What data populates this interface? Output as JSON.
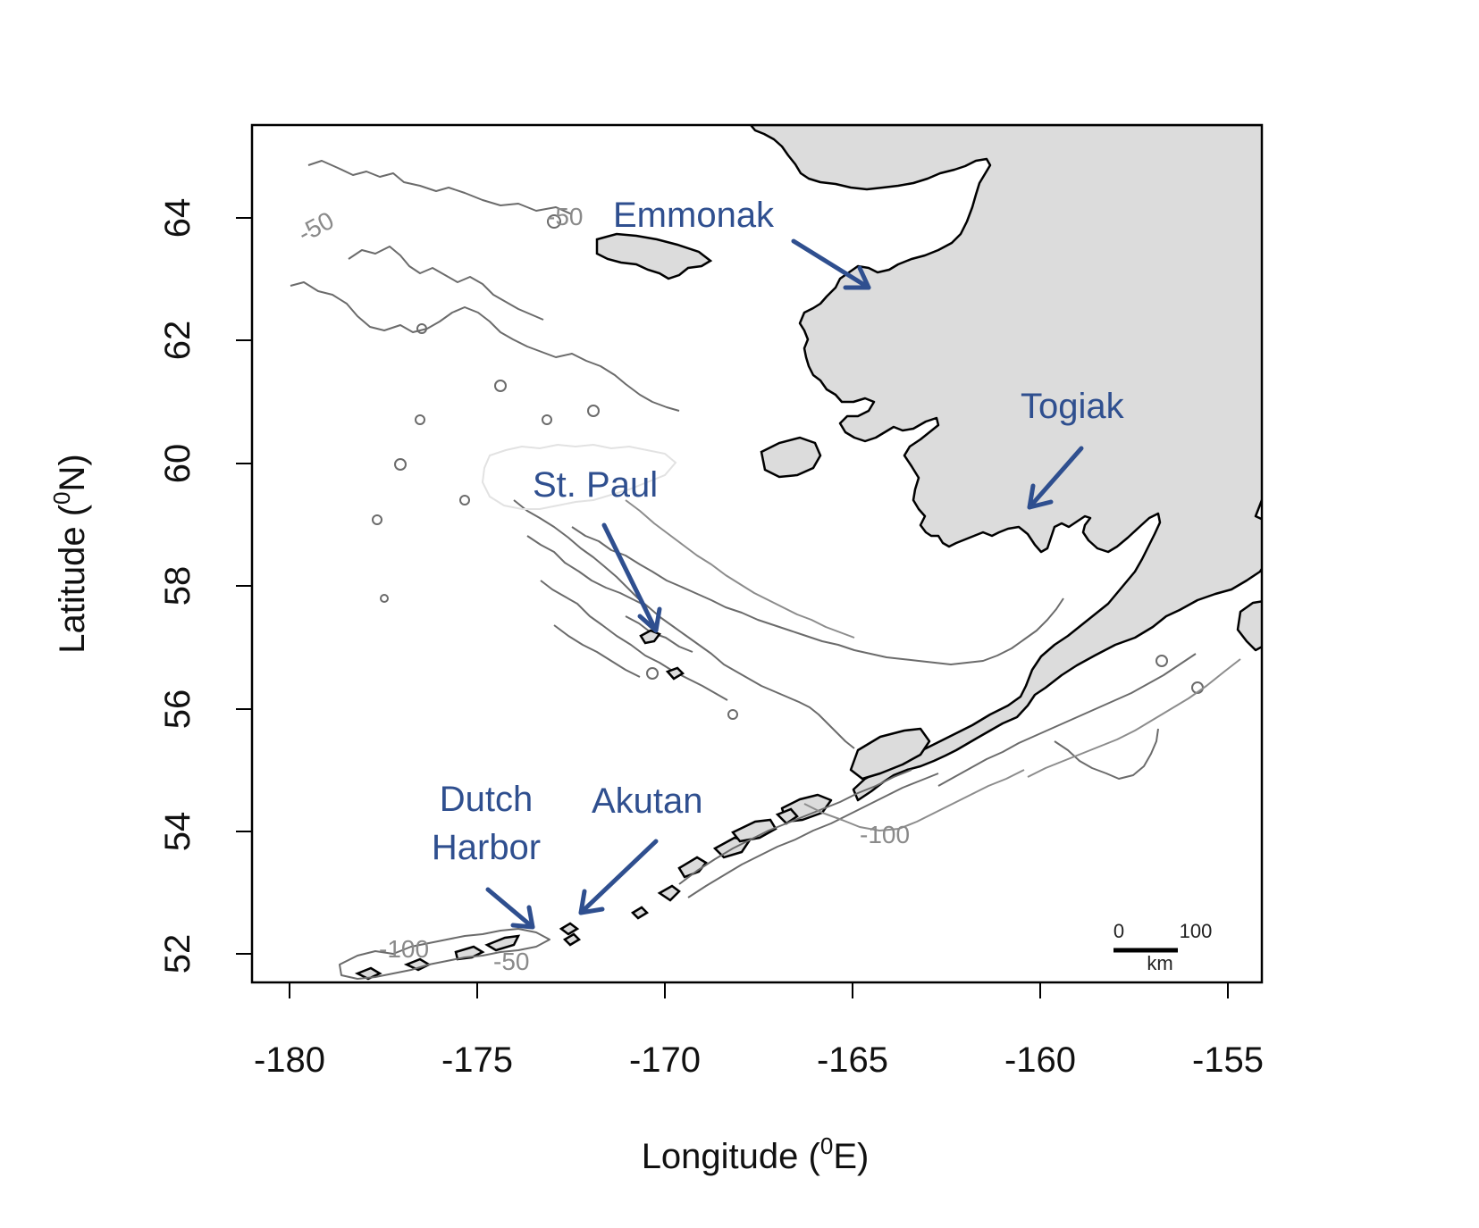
{
  "axes": {
    "xlabel_main": "Longitude (",
    "xlabel_sup": "0",
    "xlabel_end": "E)",
    "ylabel_main": "Latitude (",
    "ylabel_sup": "0",
    "ylabel_end": "N)",
    "x_ticks": [
      "-180",
      "-175",
      "-170",
      "-165",
      "-160",
      "-155"
    ],
    "y_ticks": [
      "52",
      "54",
      "56",
      "58",
      "60",
      "62",
      "64"
    ]
  },
  "places": {
    "emmonak": "Emmonak",
    "togiak": "Togiak",
    "st_paul": "St. Paul",
    "dutch_line1": "Dutch",
    "dutch_line2": "Harbor",
    "akutan": "Akutan"
  },
  "contour_labels": {
    "a": "-50",
    "b": "-50",
    "c": "-100",
    "d": "-100",
    "e": "-50"
  },
  "scale_bar": {
    "start": "0",
    "end": "100",
    "unit": "km"
  },
  "colors": {
    "land": "#dcdcdc",
    "label_blue": "#2F4F8F",
    "contour": "#6b6b6b"
  }
}
